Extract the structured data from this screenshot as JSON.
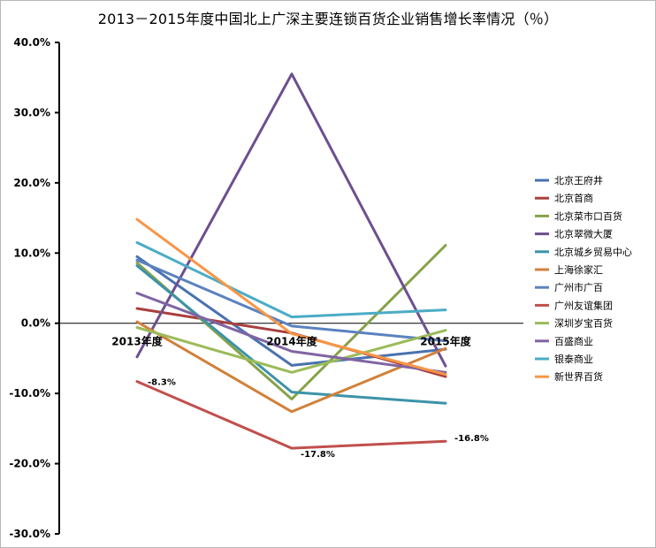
{
  "chart_data": {
    "type": "line",
    "title": "2013－2015年度中国北上广深主要连锁百货企业销售增长率情况（％）",
    "categories": [
      "2013年度",
      "2014年度",
      "2015年度"
    ],
    "ylim": [
      -30,
      40
    ],
    "ytick_step": 10,
    "ytick_labels": [
      "40.0%",
      "30.0%",
      "20.0%",
      "10.0%",
      "0.0%",
      "-10.0%",
      "-20.0%",
      "-30.0%"
    ],
    "grid": false,
    "legend_position": "right",
    "series": [
      {
        "name": "北京王府井",
        "color": "#4a72b0",
        "values": [
          9.5,
          -6.0,
          -3.7
        ]
      },
      {
        "name": "北京首商",
        "color": "#a8403e",
        "values": [
          2.1,
          -1.4,
          -7.6
        ]
      },
      {
        "name": "北京菜市口百货",
        "color": "#87a24a",
        "values": [
          8.6,
          -10.8,
          11.1
        ]
      },
      {
        "name": "北京翠微大厦",
        "color": "#6d4f8f",
        "values": [
          -4.8,
          35.5,
          -6.1
        ]
      },
      {
        "name": "北京城乡贸易中心",
        "color": "#3d93a8",
        "values": [
          8.2,
          -9.8,
          -11.4
        ]
      },
      {
        "name": "上海徐家汇",
        "color": "#d1813a",
        "values": [
          0.2,
          -12.6,
          -3.6
        ]
      },
      {
        "name": "广州市广百",
        "color": "#5b82c0",
        "values": [
          9.0,
          -0.4,
          -2.5
        ]
      },
      {
        "name": "广州友谊集团",
        "color": "#c0504d",
        "values": [
          -8.3,
          -17.8,
          -16.8
        ]
      },
      {
        "name": "深圳岁宝百货",
        "color": "#9bbb59",
        "values": [
          -0.6,
          -7.0,
          -1.0
        ]
      },
      {
        "name": "百盛商业",
        "color": "#8064a2",
        "values": [
          4.3,
          -4.0,
          -7.0
        ]
      },
      {
        "name": "银泰商业",
        "color": "#4bacc6",
        "values": [
          11.5,
          0.9,
          1.9
        ]
      },
      {
        "name": "新世界百货",
        "color": "#f79646",
        "values": [
          14.8,
          -1.5,
          -7.3
        ]
      }
    ],
    "data_labels": [
      {
        "series": "广州友谊集团",
        "category_index": 0,
        "text": "-8.3%"
      },
      {
        "series": "广州友谊集团",
        "category_index": 1,
        "text": "-17.8%"
      },
      {
        "series": "广州友谊集团",
        "category_index": 2,
        "text": "-16.8%"
      }
    ]
  }
}
